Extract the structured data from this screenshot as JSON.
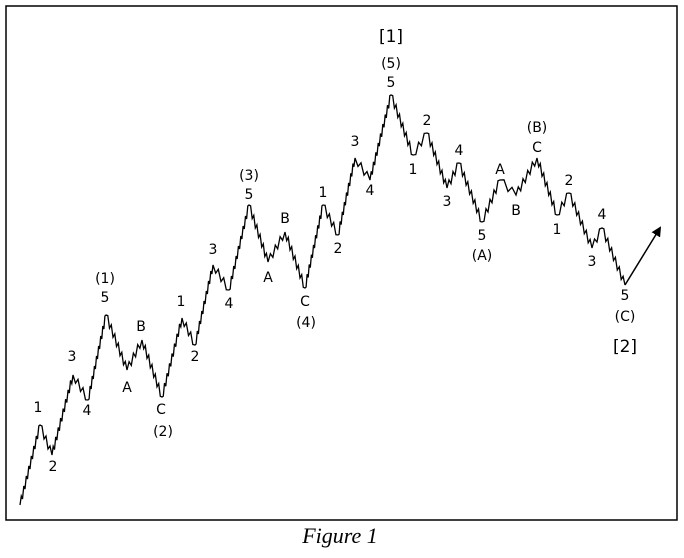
{
  "labels": [
    "1",
    "2",
    "3",
    "4",
    "(1)",
    "5",
    "A",
    "B",
    "C",
    "(2)",
    "1",
    "2",
    "3",
    "4",
    "(3)",
    "5",
    "A",
    "B",
    "C",
    "(4)",
    "1",
    "2",
    "3",
    "4",
    "[1]",
    "(5)",
    "5",
    "1",
    "2",
    "3",
    "4",
    "5",
    "(A)",
    "A",
    "B",
    "(B)",
    "C",
    "1",
    "2",
    "3",
    "4",
    "5",
    "(C)",
    "[2]"
  ],
  "caption": "Figure 1"
}
